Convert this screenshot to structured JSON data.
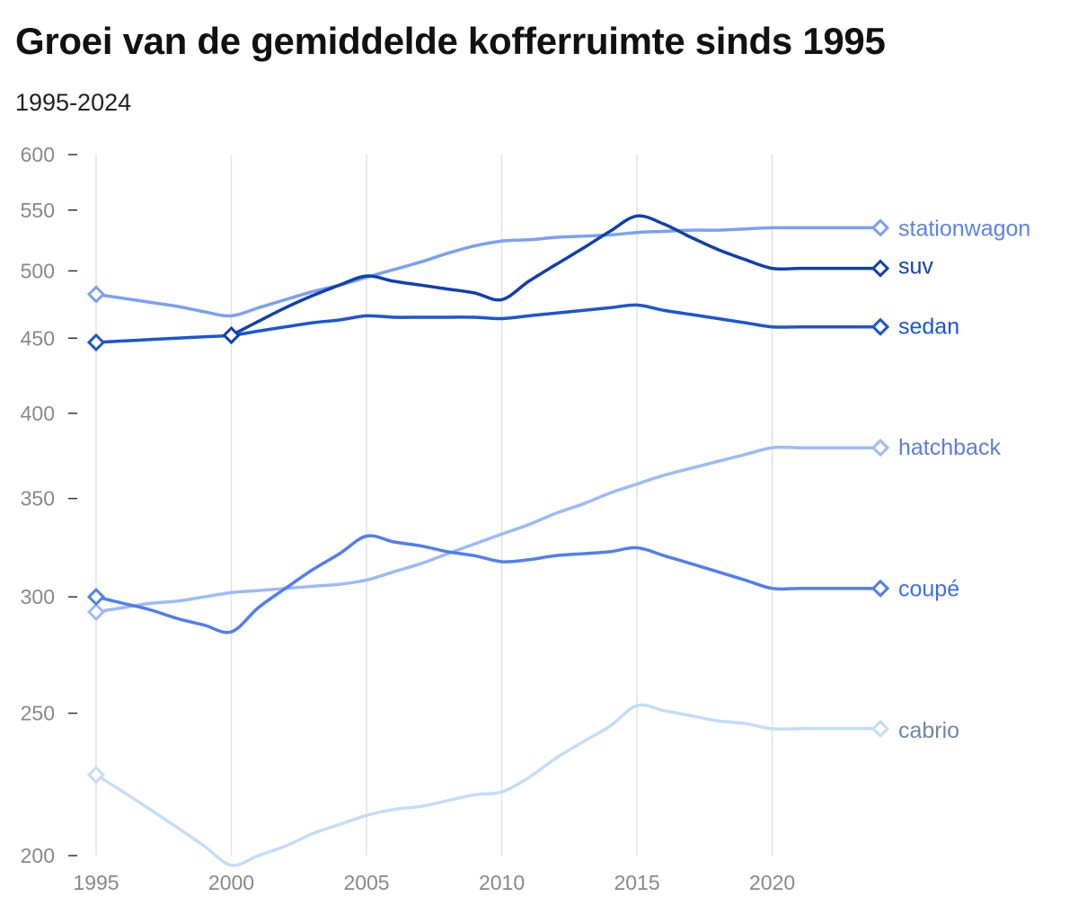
{
  "title": "Groei van de gemiddelde kofferruimte sinds 1995",
  "subtitle": "1995-2024",
  "chart_data": {
    "type": "line",
    "title": "Groei van de gemiddelde kofferruimte sinds 1995",
    "subtitle": "1995-2024",
    "xlabel": "",
    "ylabel": "",
    "y_scale": "log",
    "ylim": [
      200,
      600
    ],
    "xlim": [
      1995,
      2024
    ],
    "y_ticks": [
      600,
      550,
      500,
      450,
      400,
      350,
      300,
      250,
      200
    ],
    "x_ticks": [
      1995,
      2000,
      2005,
      2010,
      2015,
      2020
    ],
    "grid": "vertical",
    "legend": "labels at line ends (right)",
    "x": [
      1995,
      1996,
      1997,
      1998,
      1999,
      2000,
      2001,
      2002,
      2003,
      2004,
      2005,
      2006,
      2007,
      2008,
      2009,
      2010,
      2011,
      2012,
      2013,
      2014,
      2015,
      2016,
      2017,
      2018,
      2019,
      2020,
      2021,
      2022,
      2023,
      2024
    ],
    "series": [
      {
        "name": "stationwagon",
        "color": "#7b9ff5",
        "label_color": "#5b83e8",
        "values": [
          482,
          479,
          476,
          473,
          469,
          466,
          472,
          478,
          484,
          489,
          495,
          501,
          507,
          514,
          520,
          524,
          525,
          527,
          528,
          529,
          531,
          532,
          533,
          533,
          534,
          535,
          535,
          535,
          535,
          535
        ]
      },
      {
        "name": "suv",
        "color": "#0f3fb0",
        "label_color": "#0f3fb0",
        "values": [
          null,
          null,
          null,
          null,
          null,
          452,
          462,
          472,
          481,
          489,
          496,
          492,
          489,
          486,
          483,
          478,
          492,
          505,
          518,
          532,
          545,
          538,
          527,
          517,
          509,
          502,
          502,
          502,
          502,
          502
        ]
      },
      {
        "name": "sedan",
        "color": "#1a55d6",
        "label_color": "#1a55d6",
        "values": [
          447,
          448,
          449,
          450,
          451,
          452,
          455,
          458,
          461,
          463,
          466,
          465,
          465,
          465,
          465,
          464,
          466,
          468,
          470,
          472,
          474,
          470,
          467,
          464,
          461,
          458,
          458,
          458,
          458,
          458
        ]
      },
      {
        "name": "hatchback",
        "color": "#9cbaf7",
        "label_color": "#5c7fd1",
        "values": [
          293,
          295,
          297,
          298,
          300,
          302,
          303,
          304,
          305,
          306,
          308,
          312,
          316,
          321,
          326,
          331,
          336,
          342,
          347,
          353,
          358,
          363,
          367,
          371,
          375,
          379,
          379,
          379,
          379,
          379
        ]
      },
      {
        "name": "coupé",
        "color": "#4f7ef0",
        "label_color": "#3b6fe8",
        "values": [
          300,
          297,
          294,
          290,
          287,
          284,
          295,
          304,
          313,
          321,
          330,
          327,
          325,
          322,
          320,
          317,
          318,
          320,
          321,
          322,
          324,
          320,
          316,
          312,
          308,
          304,
          304,
          304,
          304,
          304
        ]
      },
      {
        "name": "cabrio",
        "color": "#c3dcfb",
        "label_color": "#6f88a8",
        "values": [
          227,
          221,
          215,
          209,
          203,
          197,
          200,
          203,
          207,
          210,
          213,
          215,
          216,
          218,
          220,
          221,
          226,
          233,
          239,
          245,
          253,
          251,
          249,
          247,
          246,
          244,
          244,
          244,
          244,
          244
        ]
      }
    ]
  }
}
